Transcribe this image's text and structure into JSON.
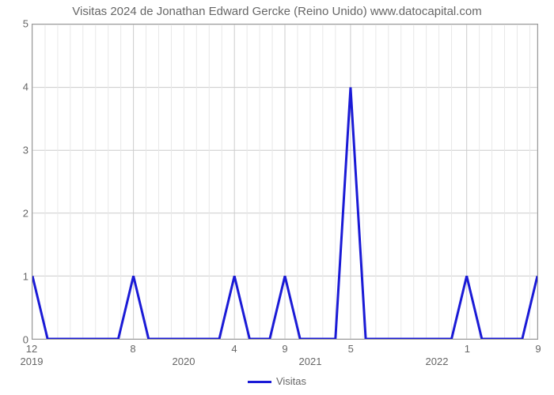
{
  "chart": {
    "type": "line",
    "title": "Visitas 2024 de Jonathan Edward Gercke (Reino Unido) www.datocapital.com",
    "title_fontsize": 15,
    "title_color": "#666666",
    "background_color": "#ffffff",
    "plot_border_color": "#999999",
    "grid_major_color": "#cccccc",
    "grid_minor_color": "#e8e8e8",
    "line_color": "#1a1ad6",
    "line_width": 3,
    "y_axis": {
      "min": 0,
      "max": 5,
      "ticks": [
        0,
        1,
        2,
        3,
        4,
        5
      ],
      "tick_fontsize": 13,
      "tick_color": "#666666"
    },
    "x_axis": {
      "ticks": [
        {
          "pos": 0.0,
          "label": "12",
          "year": "2019"
        },
        {
          "pos": 0.2,
          "label": "8"
        },
        {
          "pos": 0.3,
          "label": "",
          "year": "2020"
        },
        {
          "pos": 0.4,
          "label": "4"
        },
        {
          "pos": 0.5,
          "label": "9"
        },
        {
          "pos": 0.55,
          "label": "",
          "year": "2021"
        },
        {
          "pos": 0.63,
          "label": "5"
        },
        {
          "pos": 0.8,
          "label": "",
          "year": "2022"
        },
        {
          "pos": 0.86,
          "label": "1"
        },
        {
          "pos": 1.0,
          "label": "9"
        }
      ],
      "tick_fontsize": 13,
      "tick_color": "#666666"
    },
    "major_vlines": [
      0.0,
      0.2,
      0.4,
      0.5,
      0.63,
      0.86,
      1.0
    ],
    "minor_vlines": [
      0.025,
      0.05,
      0.075,
      0.1,
      0.125,
      0.15,
      0.175,
      0.225,
      0.25,
      0.275,
      0.3,
      0.325,
      0.35,
      0.375,
      0.425,
      0.45,
      0.475,
      0.525,
      0.55,
      0.575,
      0.6,
      0.655,
      0.68,
      0.705,
      0.73,
      0.755,
      0.78,
      0.805,
      0.83,
      0.885,
      0.91,
      0.935,
      0.96,
      0.985
    ],
    "data_points": [
      {
        "x": 0.0,
        "y": 1
      },
      {
        "x": 0.03,
        "y": 0
      },
      {
        "x": 0.17,
        "y": 0
      },
      {
        "x": 0.2,
        "y": 1
      },
      {
        "x": 0.23,
        "y": 0
      },
      {
        "x": 0.37,
        "y": 0
      },
      {
        "x": 0.4,
        "y": 1
      },
      {
        "x": 0.43,
        "y": 0
      },
      {
        "x": 0.47,
        "y": 0
      },
      {
        "x": 0.5,
        "y": 1
      },
      {
        "x": 0.53,
        "y": 0
      },
      {
        "x": 0.6,
        "y": 0
      },
      {
        "x": 0.63,
        "y": 4
      },
      {
        "x": 0.66,
        "y": 0
      },
      {
        "x": 0.83,
        "y": 0
      },
      {
        "x": 0.86,
        "y": 1
      },
      {
        "x": 0.89,
        "y": 0
      },
      {
        "x": 0.97,
        "y": 0
      },
      {
        "x": 1.0,
        "y": 1
      }
    ],
    "legend": {
      "label": "Visitas",
      "swatch_color": "#1a1ad6"
    }
  }
}
